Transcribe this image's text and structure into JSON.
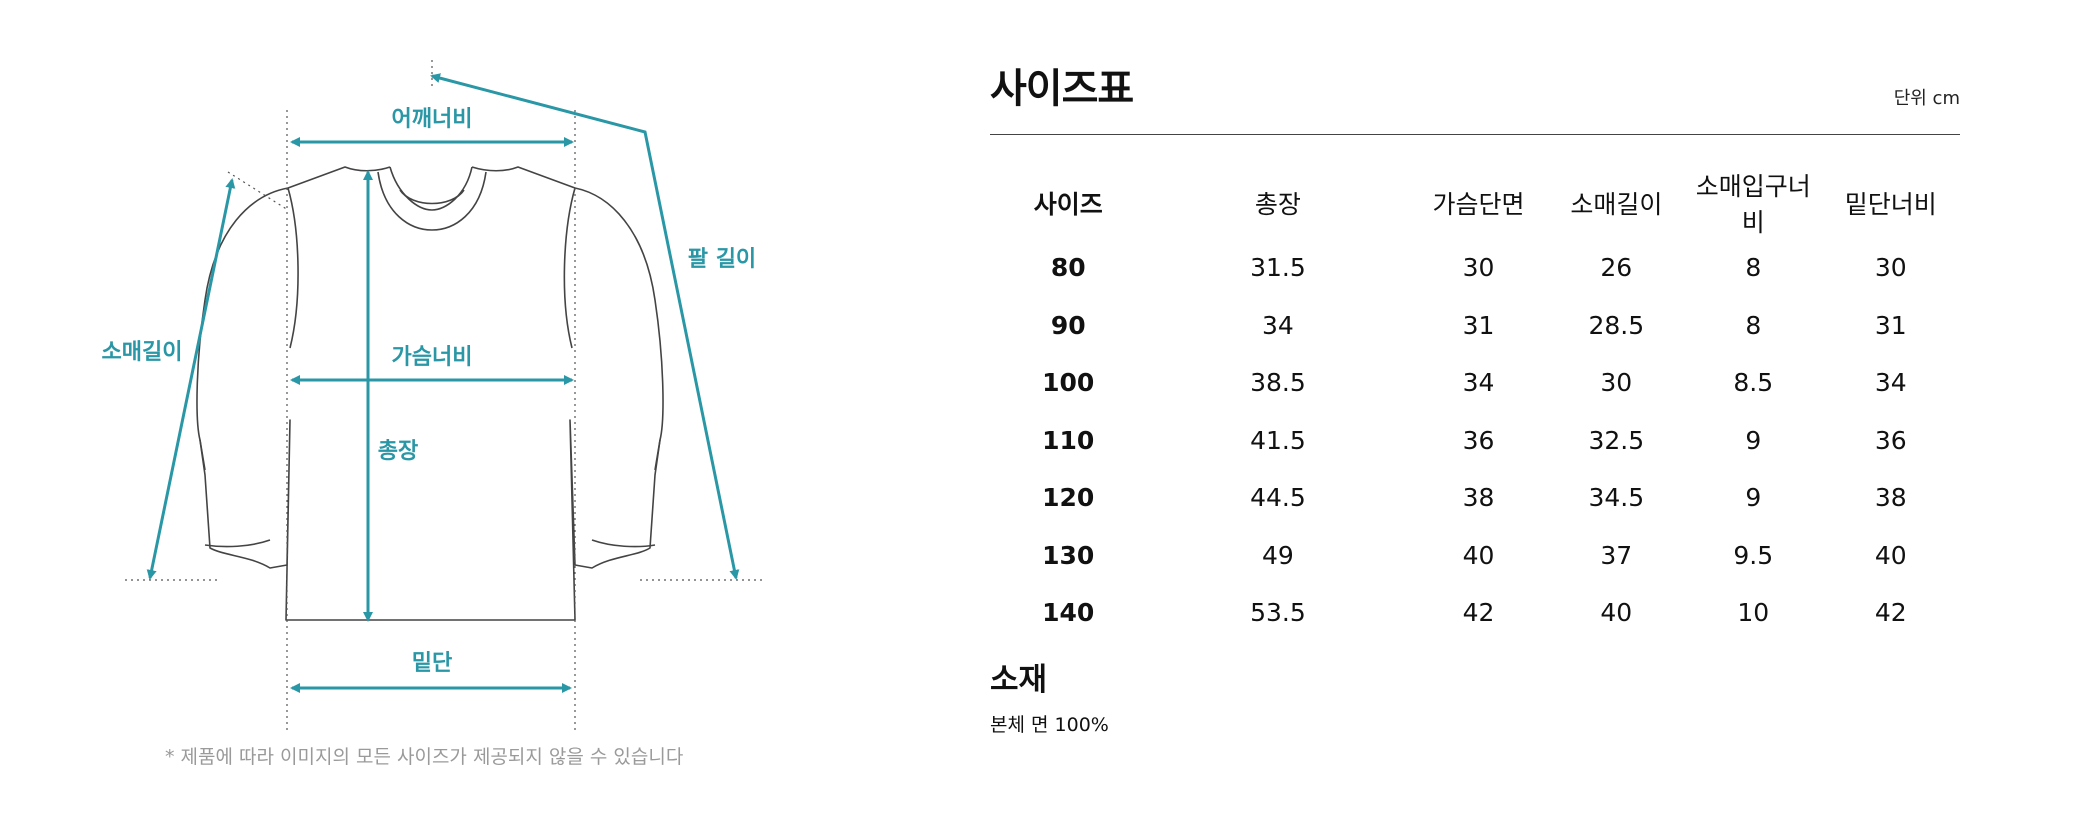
{
  "diagram": {
    "labels": {
      "shoulder": "어깨너비",
      "sleeve_length": "소매길이",
      "arm_length": "팔 길이",
      "chest": "가슴너비",
      "total_length": "총장",
      "hem": "밑단"
    },
    "accent_color": "#2a97a6",
    "note": "* 제품에 따라 이미지의 모든 사이즈가 제공되지 않을 수 있습니다"
  },
  "size_table": {
    "title": "사이즈표",
    "unit": "단위 cm",
    "headers": [
      "사이즈",
      "총장",
      "가슴단면",
      "소매길이",
      "소매입구너비",
      "밑단너비"
    ],
    "rows": [
      [
        "80",
        "31.5",
        "30",
        "26",
        "8",
        "30"
      ],
      [
        "90",
        "34",
        "31",
        "28.5",
        "8",
        "31"
      ],
      [
        "100",
        "38.5",
        "34",
        "30",
        "8.5",
        "34"
      ],
      [
        "110",
        "41.5",
        "36",
        "32.5",
        "9",
        "36"
      ],
      [
        "120",
        "44.5",
        "38",
        "34.5",
        "9",
        "38"
      ],
      [
        "130",
        "49",
        "40",
        "37",
        "9.5",
        "40"
      ],
      [
        "140",
        "53.5",
        "42",
        "40",
        "10",
        "42"
      ]
    ]
  },
  "material": {
    "title": "소재",
    "value": "본체 면 100%"
  }
}
